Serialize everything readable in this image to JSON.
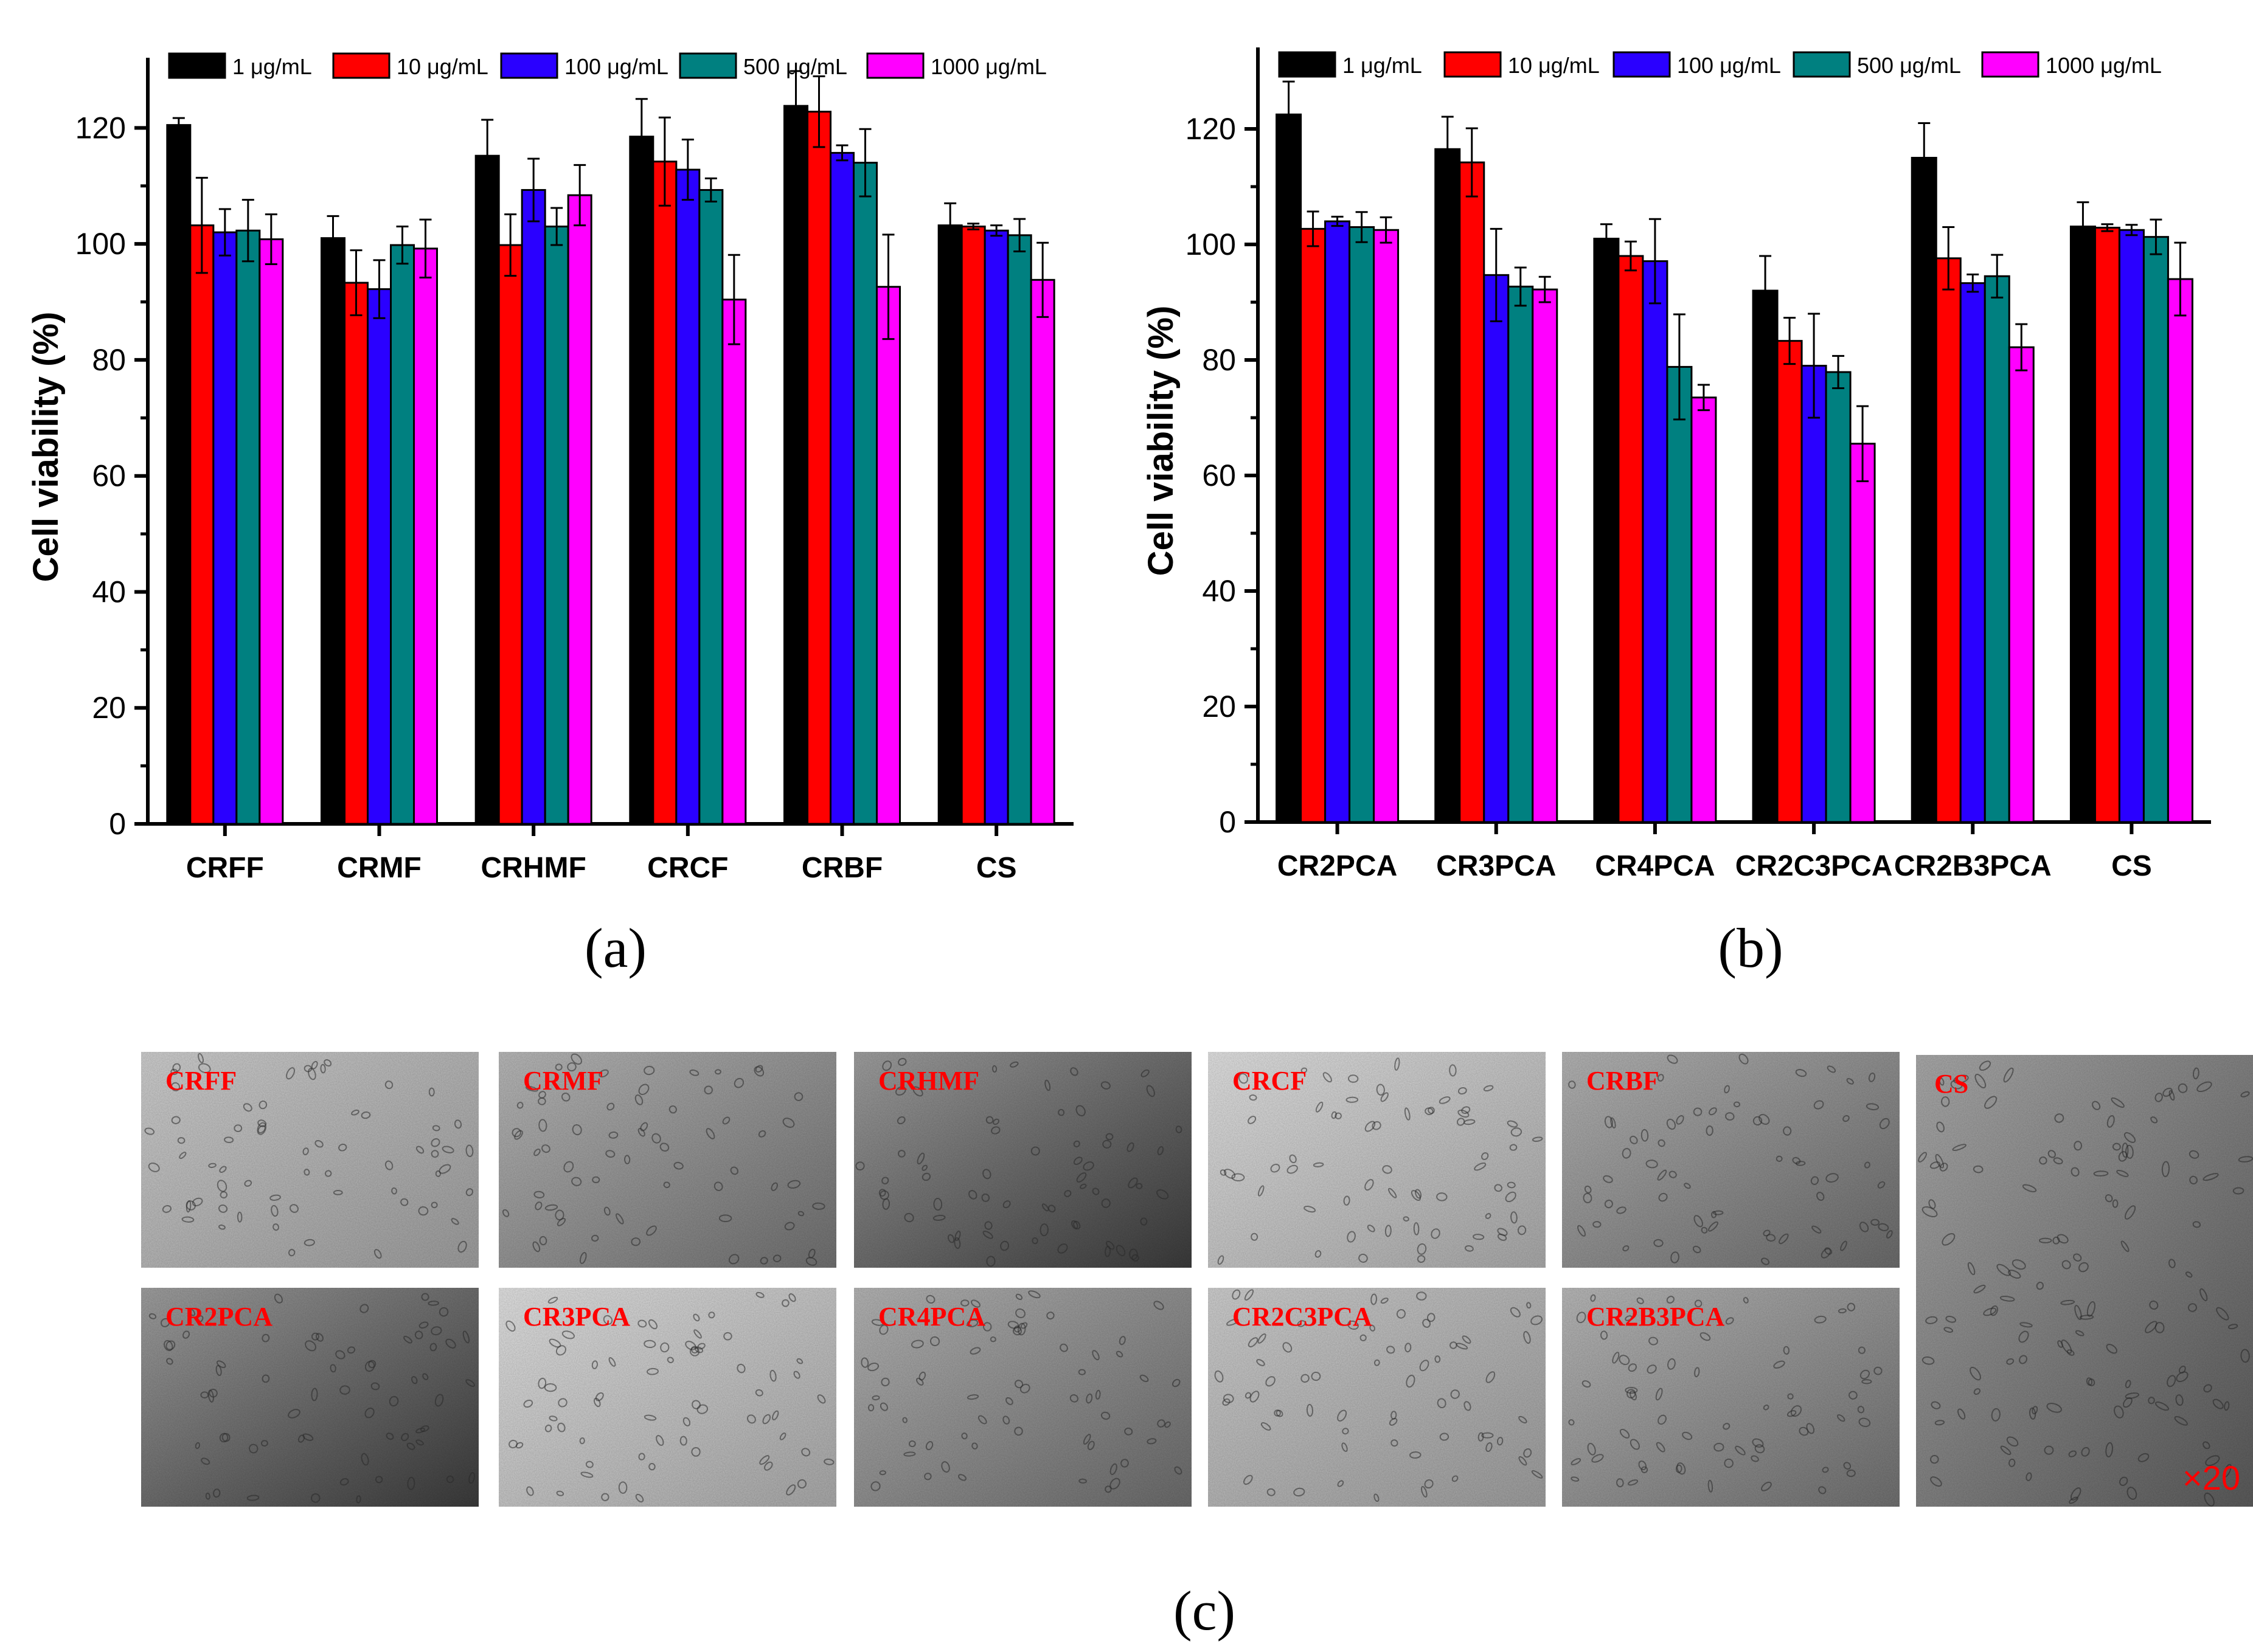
{
  "chart_data": [
    {
      "type": "bar",
      "panel_label": "(a)",
      "ylabel": "Cell viability (%)",
      "ylim": [
        0,
        130
      ],
      "yticks": [
        0,
        20,
        40,
        60,
        80,
        100,
        120
      ],
      "categories": [
        "CRFF",
        "CRMF",
        "CRHMF",
        "CRCF",
        "CRBF",
        "CS"
      ],
      "series": [
        {
          "name": "1 μg/mL",
          "color": "#000000",
          "values": [
            120.5,
            101.0,
            115.2,
            118.5,
            123.8,
            103.2
          ],
          "errors": [
            1.2,
            3.8,
            6.2,
            6.5,
            6.0,
            3.8
          ]
        },
        {
          "name": "10 μg/mL",
          "color": "#ff0000",
          "values": [
            103.2,
            93.3,
            99.8,
            114.2,
            122.8,
            103.0
          ],
          "errors": [
            8.2,
            5.6,
            5.3,
            7.6,
            6.1,
            0.5
          ]
        },
        {
          "name": "100 μg/mL",
          "color": "#2a00ff",
          "values": [
            102.0,
            92.2,
            109.3,
            112.8,
            115.7,
            102.3
          ],
          "errors": [
            4.0,
            5.0,
            5.4,
            5.2,
            1.3,
            0.9
          ]
        },
        {
          "name": "500 μg/mL",
          "color": "#008080",
          "values": [
            102.3,
            99.8,
            103.0,
            109.3,
            114.0,
            101.5
          ],
          "errors": [
            5.3,
            3.2,
            3.2,
            2.0,
            5.8,
            2.8
          ]
        },
        {
          "name": "1000 μg/mL",
          "color": "#ff00ff",
          "values": [
            100.8,
            99.2,
            108.4,
            90.4,
            92.6,
            93.8
          ],
          "errors": [
            4.3,
            5.0,
            5.2,
            7.7,
            9.0,
            6.4
          ]
        }
      ]
    },
    {
      "type": "bar",
      "panel_label": "(b)",
      "ylabel": "Cell viability (%)",
      "ylim": [
        0,
        132
      ],
      "yticks": [
        0,
        20,
        40,
        60,
        80,
        100,
        120
      ],
      "categories": [
        "CR2PCA",
        "CR3PCA",
        "CR4PCA",
        "CR2C3PCA",
        "CR2B3PCA",
        "CS"
      ],
      "series": [
        {
          "name": "1 μg/mL",
          "color": "#000000",
          "values": [
            122.5,
            116.5,
            101.0,
            92.0,
            115.0,
            103.1
          ],
          "errors": [
            5.7,
            5.6,
            2.5,
            6.0,
            6.0,
            4.2
          ]
        },
        {
          "name": "10 μg/mL",
          "color": "#ff0000",
          "values": [
            102.7,
            114.2,
            98.0,
            83.3,
            97.6,
            102.9
          ],
          "errors": [
            3.0,
            5.9,
            2.5,
            4.0,
            5.4,
            0.6
          ]
        },
        {
          "name": "100 μg/mL",
          "color": "#2a00ff",
          "values": [
            104.0,
            94.7,
            97.1,
            79.0,
            93.3,
            102.5
          ],
          "errors": [
            0.8,
            8.0,
            7.3,
            9.0,
            1.5,
            0.9
          ]
        },
        {
          "name": "500 μg/mL",
          "color": "#008080",
          "values": [
            103.0,
            92.7,
            78.8,
            77.9,
            94.5,
            101.3
          ],
          "errors": [
            2.6,
            3.3,
            9.1,
            2.8,
            3.7,
            3.0
          ]
        },
        {
          "name": "1000 μg/mL",
          "color": "#ff00ff",
          "values": [
            102.5,
            92.2,
            73.5,
            65.5,
            82.2,
            94.0
          ],
          "errors": [
            2.2,
            2.2,
            2.2,
            6.5,
            4.0,
            6.3
          ]
        }
      ]
    }
  ],
  "micrographs": {
    "panel_label": "(c)",
    "magnification": "×20",
    "top_row": [
      "CRFF",
      "CRMF",
      "CRHMF",
      "CRCF",
      "CRBF"
    ],
    "bottom_row": [
      "CR2PCA",
      "CR3PCA",
      "CR4PCA",
      "CR2C3PCA",
      "CR2B3PCA"
    ],
    "tall_panel": "CS",
    "label_color": "#ff0000"
  }
}
